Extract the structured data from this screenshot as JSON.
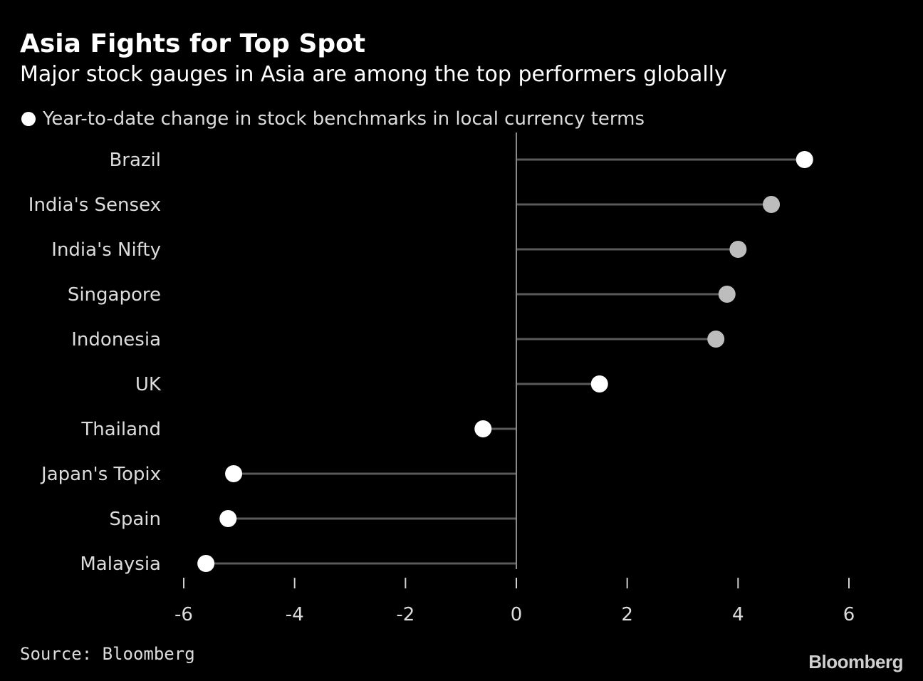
{
  "chart_data": {
    "type": "lollipop",
    "title": "Asia Fights for Top Spot",
    "subtitle": "Major stock gauges in Asia are among the top performers globally",
    "legend": [
      {
        "label": "Year-to-date change in stock benchmarks in local currency terms",
        "color": "#ffffff"
      }
    ],
    "categories": [
      "Brazil",
      "India's Sensex",
      "India's Nifty",
      "Singapore",
      "Indonesia",
      "UK",
      "Thailand",
      "Japan's Topix",
      "Spain",
      "Malaysia"
    ],
    "values": [
      5.2,
      4.6,
      4.0,
      3.8,
      3.6,
      1.5,
      -0.6,
      -5.1,
      -5.2,
      -5.6
    ],
    "highlight": [
      false,
      true,
      true,
      true,
      true,
      false,
      false,
      false,
      false,
      false
    ],
    "xlim": [
      -6,
      6
    ],
    "xticks": [
      -6,
      -4,
      -2,
      0,
      2,
      4,
      6
    ],
    "xtick_labels": [
      "-6",
      "-4",
      "-2",
      "0",
      "2",
      "4",
      "6"
    ],
    "xlabel": "",
    "ylabel": "",
    "grid": false,
    "colors": {
      "default_dot": "#ffffff",
      "highlight_dot": "#bdbdbd",
      "stem": "#5a5a5a",
      "zero_line": "#8a8a8a",
      "tick": "#cfcfcf",
      "text": "#dcdcdc"
    }
  },
  "source": "Source: Bloomberg",
  "brand": "Bloomberg"
}
